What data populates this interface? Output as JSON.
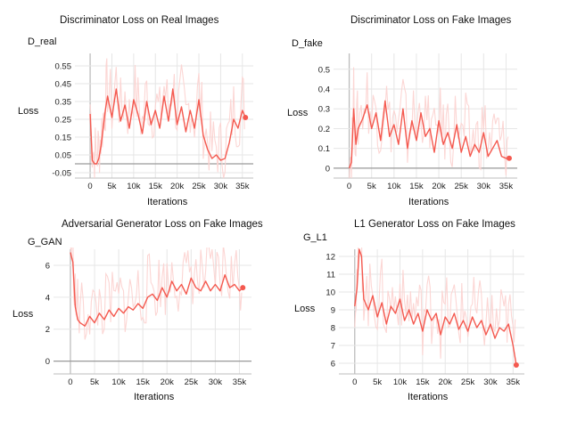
{
  "colors": {
    "line": "#f4594f",
    "band": "#fcd2cf",
    "grid": "#e6e6e6",
    "zero": "#9a9a9a",
    "axis": "#bdbdbd"
  },
  "chart_data": [
    {
      "type": "line",
      "title": "Discriminator Loss on Real Images",
      "tag": "D_real",
      "xlabel": "Iterations",
      "ylabel": "Loss",
      "xlim": [
        -3500,
        37500
      ],
      "ylim": [
        -0.08,
        0.62
      ],
      "x_ticks": [
        0,
        5000,
        10000,
        15000,
        20000,
        25000,
        30000,
        35000
      ],
      "x_tick_labels": [
        "0",
        "5k",
        "10k",
        "15k",
        "20k",
        "25k",
        "30k",
        "35k"
      ],
      "y_ticks": [
        -0.05,
        0.05,
        0.15,
        0.25,
        0.35,
        0.45,
        0.55
      ],
      "y_tick_labels": [
        "-0.05",
        "0.05",
        "0.15",
        "0.25",
        "0.35",
        "0.45",
        "0.55"
      ],
      "series": [
        {
          "x": [
            0,
            500,
            1000,
            1500,
            2000,
            2500,
            3000,
            3500,
            4000,
            5000,
            6000,
            7000,
            8000,
            9000,
            10000,
            11000,
            12000,
            13000,
            14000,
            15000,
            16000,
            17000,
            18000,
            19000,
            20000,
            21000,
            22000,
            23000,
            24000,
            25000,
            26000,
            27000,
            28000,
            29000,
            30000,
            31000,
            32000,
            33000,
            34000,
            35000,
            35700
          ],
          "y": [
            0.28,
            0.02,
            0.0,
            0.0,
            0.03,
            0.1,
            0.2,
            0.3,
            0.38,
            0.26,
            0.42,
            0.24,
            0.33,
            0.2,
            0.36,
            0.28,
            0.17,
            0.35,
            0.22,
            0.3,
            0.2,
            0.38,
            0.24,
            0.42,
            0.22,
            0.32,
            0.18,
            0.3,
            0.2,
            0.36,
            0.16,
            0.08,
            0.03,
            0.05,
            0.02,
            0.03,
            0.12,
            0.25,
            0.2,
            0.3,
            0.26
          ]
        }
      ]
    },
    {
      "type": "line",
      "title": "Discriminator Loss on Fake Images",
      "tag": "D_fake",
      "xlabel": "Iterations",
      "ylabel": "Loss",
      "xlim": [
        -3500,
        37500
      ],
      "ylim": [
        -0.05,
        0.58
      ],
      "x_ticks": [
        0,
        5000,
        10000,
        15000,
        20000,
        25000,
        30000,
        35000
      ],
      "x_tick_labels": [
        "0",
        "5k",
        "10k",
        "15k",
        "20k",
        "25k",
        "30k",
        "35k"
      ],
      "y_ticks": [
        0,
        0.1,
        0.2,
        0.3,
        0.4,
        0.5
      ],
      "y_tick_labels": [
        "0",
        "0.1",
        "0.2",
        "0.3",
        "0.4",
        "0.5"
      ],
      "series": [
        {
          "x": [
            0,
            500,
            1000,
            1500,
            2000,
            3000,
            4000,
            5000,
            6000,
            7000,
            8000,
            9000,
            10000,
            11000,
            12000,
            13000,
            14000,
            15000,
            16000,
            17000,
            18000,
            19000,
            20000,
            21000,
            22000,
            23000,
            24000,
            25000,
            26000,
            27000,
            28000,
            29000,
            30000,
            31000,
            32000,
            33000,
            34000,
            35000,
            35700
          ],
          "y": [
            0.0,
            0.03,
            0.3,
            0.12,
            0.2,
            0.25,
            0.32,
            0.2,
            0.28,
            0.14,
            0.34,
            0.16,
            0.22,
            0.12,
            0.3,
            0.1,
            0.24,
            0.14,
            0.28,
            0.16,
            0.2,
            0.08,
            0.24,
            0.12,
            0.18,
            0.1,
            0.22,
            0.08,
            0.16,
            0.06,
            0.12,
            0.08,
            0.18,
            0.06,
            0.1,
            0.14,
            0.06,
            0.05,
            0.05
          ]
        }
      ]
    },
    {
      "type": "line",
      "title": "Adversarial Generator Loss on Fake Images",
      "tag": "G_GAN",
      "xlabel": "Iterations",
      "ylabel": "Loss",
      "xlim": [
        -3500,
        37500
      ],
      "ylim": [
        -0.8,
        7.0
      ],
      "x_ticks": [
        0,
        5000,
        10000,
        15000,
        20000,
        25000,
        30000,
        35000
      ],
      "x_tick_labels": [
        "0",
        "5k",
        "10k",
        "15k",
        "20k",
        "25k",
        "30k",
        "35k"
      ],
      "y_ticks": [
        0,
        2,
        4,
        6
      ],
      "y_tick_labels": [
        "0",
        "2",
        "4",
        "6"
      ],
      "series": [
        {
          "x": [
            0,
            500,
            1000,
            1500,
            2000,
            3000,
            4000,
            5000,
            6000,
            7000,
            8000,
            9000,
            10000,
            11000,
            12000,
            13000,
            14000,
            15000,
            16000,
            17000,
            18000,
            19000,
            20000,
            21000,
            22000,
            23000,
            24000,
            25000,
            26000,
            27000,
            28000,
            29000,
            30000,
            31000,
            32000,
            33000,
            34000,
            35000,
            35700
          ],
          "y": [
            6.8,
            6.2,
            3.4,
            2.6,
            2.4,
            2.2,
            2.8,
            2.4,
            3.0,
            2.6,
            3.2,
            2.8,
            3.3,
            3.0,
            3.4,
            3.2,
            3.6,
            3.3,
            4.0,
            4.2,
            3.8,
            4.6,
            4.0,
            5.0,
            4.4,
            4.8,
            4.2,
            5.2,
            4.6,
            4.4,
            5.0,
            4.4,
            4.8,
            4.4,
            5.4,
            4.6,
            4.8,
            4.4,
            4.6
          ]
        }
      ]
    },
    {
      "type": "line",
      "title": "L1 Generator Loss on Fake Images",
      "tag": "G_L1",
      "xlabel": "Iterations",
      "ylabel": "Loss",
      "xlim": [
        -3500,
        37500
      ],
      "ylim": [
        5.4,
        12.4
      ],
      "x_ticks": [
        0,
        5000,
        10000,
        15000,
        20000,
        25000,
        30000,
        35000
      ],
      "x_tick_labels": [
        "0",
        "5k",
        "10k",
        "15k",
        "20k",
        "25k",
        "30k",
        "35k"
      ],
      "y_ticks": [
        6,
        7,
        8,
        9,
        10,
        11,
        12
      ],
      "y_tick_labels": [
        "6",
        "7",
        "8",
        "9",
        "10",
        "11",
        "12"
      ],
      "series": [
        {
          "x": [
            0,
            500,
            1000,
            1500,
            2000,
            3000,
            4000,
            5000,
            6000,
            7000,
            8000,
            9000,
            10000,
            11000,
            12000,
            13000,
            14000,
            15000,
            16000,
            17000,
            18000,
            19000,
            20000,
            21000,
            22000,
            23000,
            24000,
            25000,
            26000,
            27000,
            28000,
            29000,
            30000,
            31000,
            32000,
            33000,
            34000,
            35000,
            35700
          ],
          "y": [
            9.2,
            10.2,
            12.4,
            12.0,
            9.6,
            9.0,
            9.8,
            8.6,
            9.4,
            8.2,
            9.2,
            8.8,
            9.6,
            8.4,
            9.0,
            8.2,
            8.8,
            7.8,
            9.0,
            8.4,
            8.8,
            7.6,
            8.6,
            8.2,
            8.8,
            7.9,
            8.4,
            7.8,
            8.6,
            8.0,
            8.4,
            7.6,
            8.2,
            7.4,
            8.0,
            7.8,
            8.2,
            7.0,
            5.9
          ]
        }
      ]
    }
  ]
}
